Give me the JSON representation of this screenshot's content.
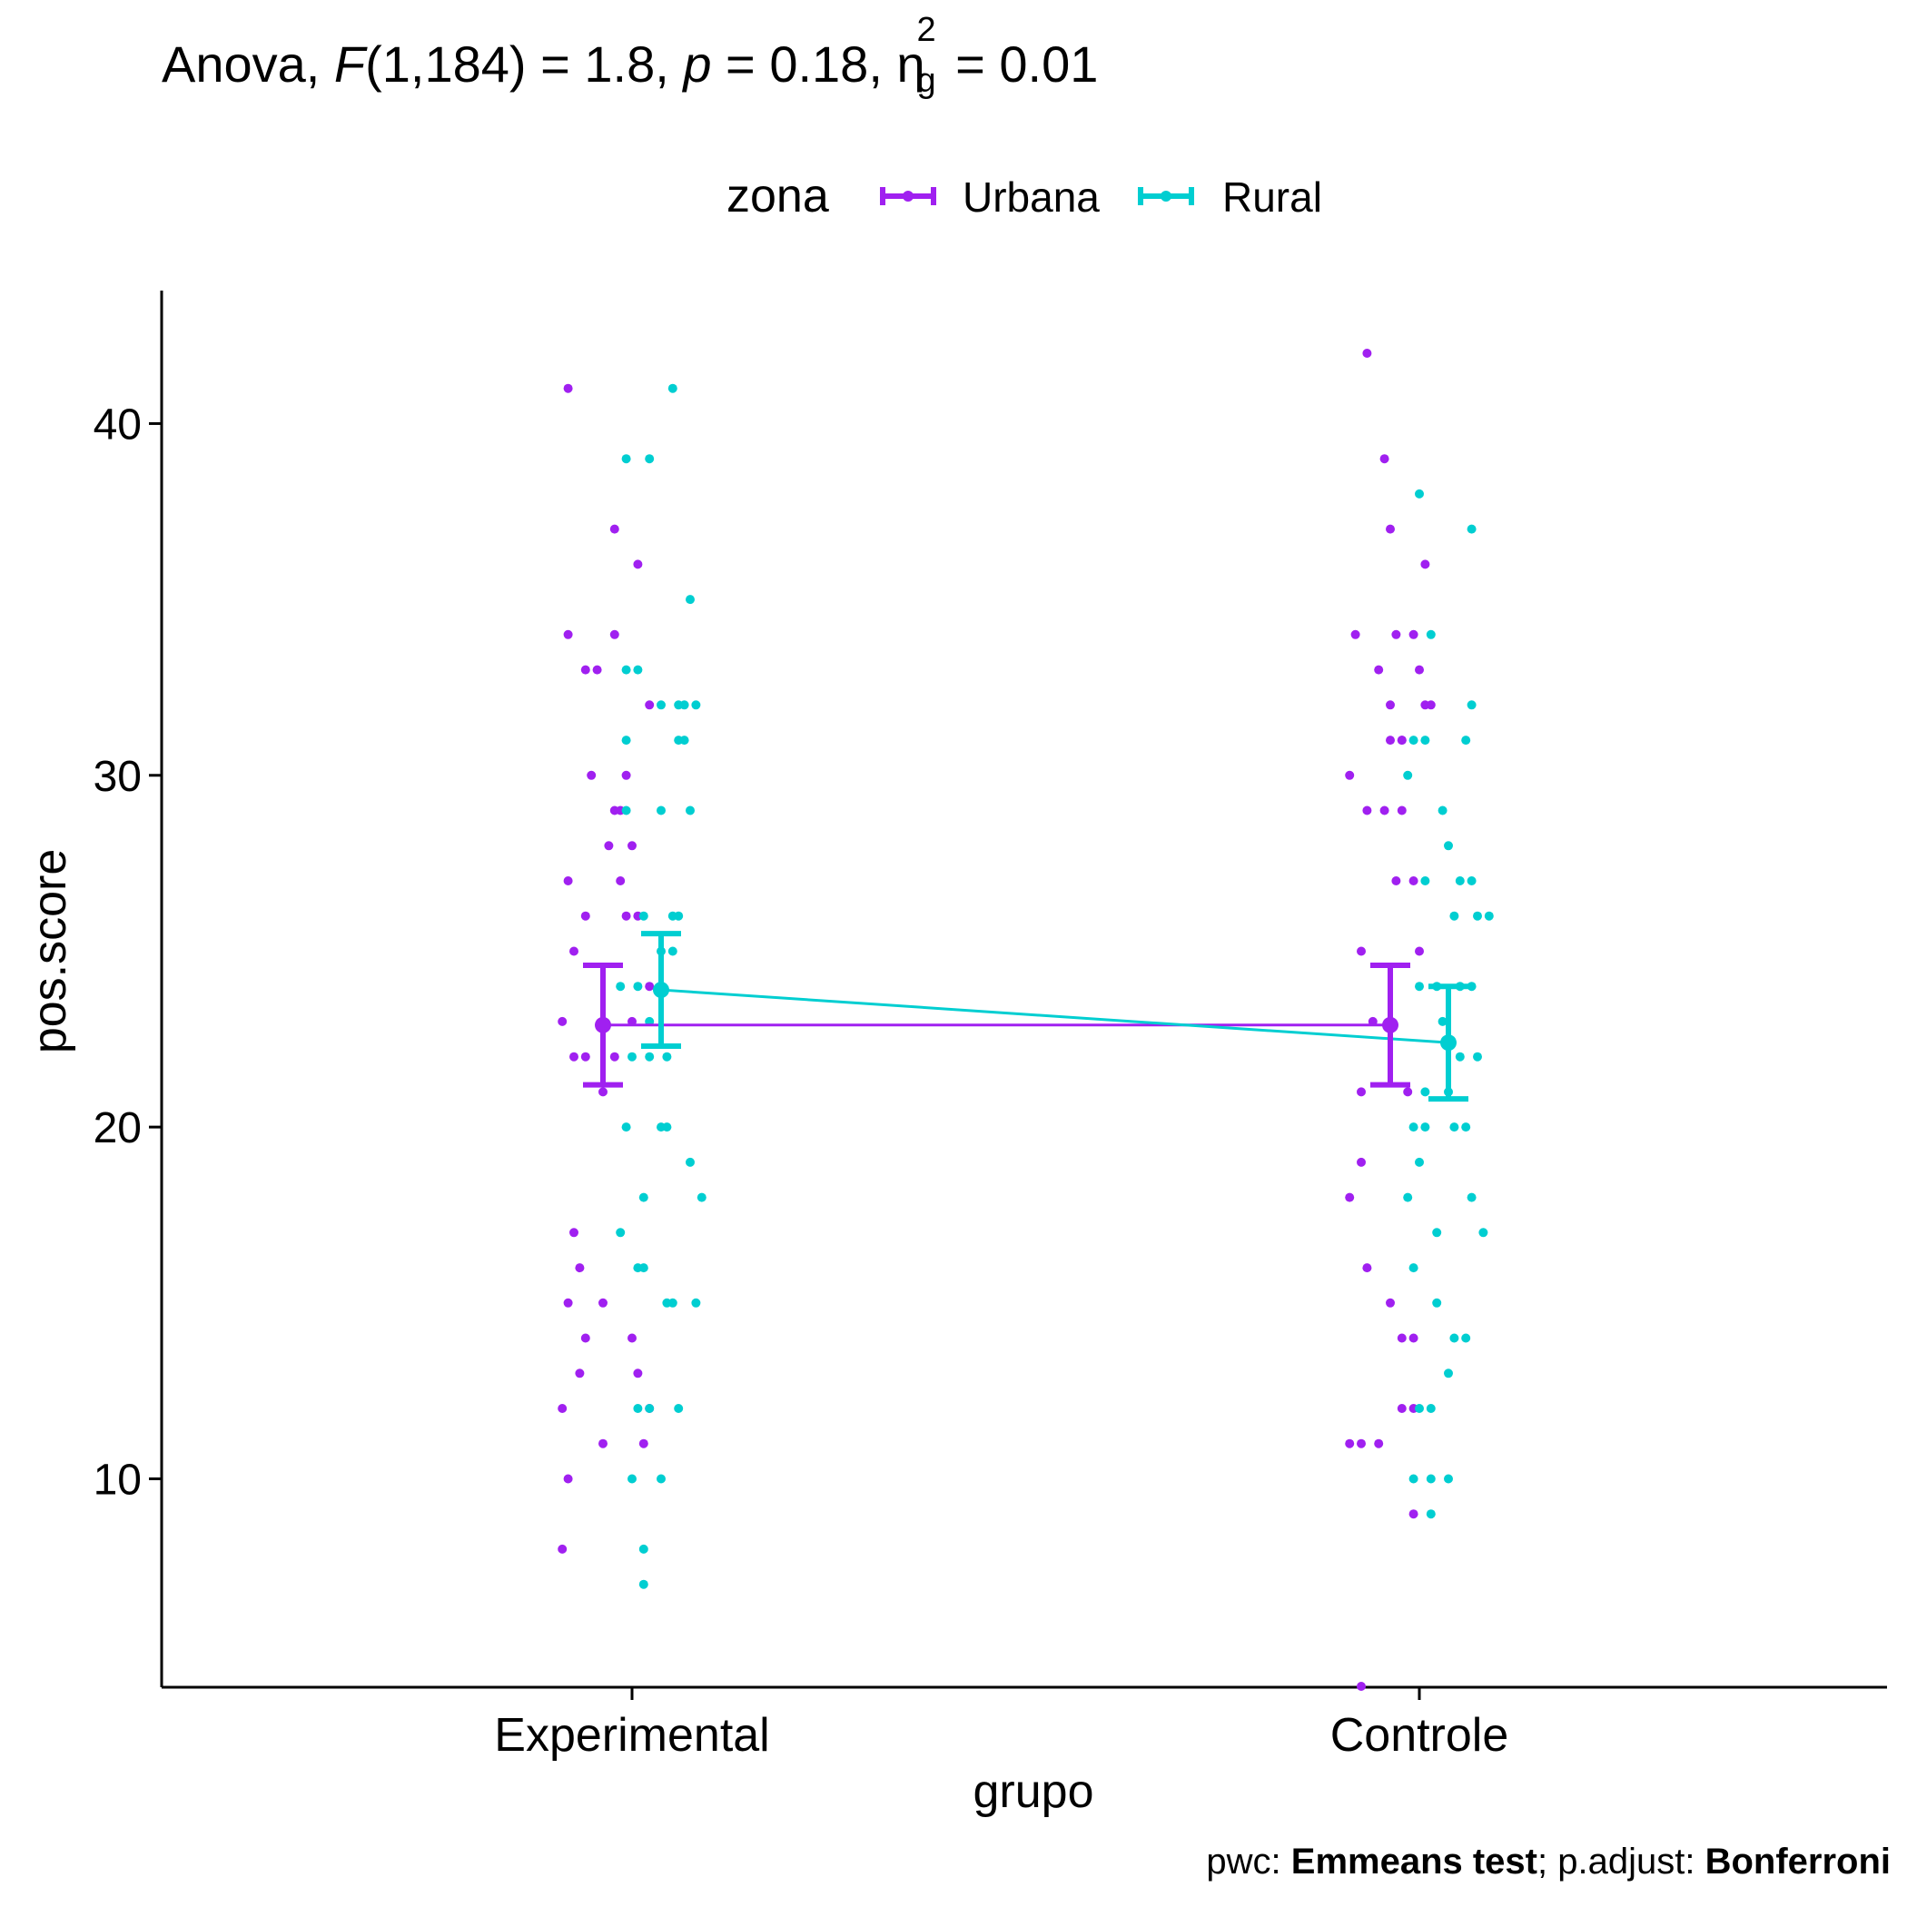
{
  "title": {
    "prefix": "Anova, ",
    "F_symbol": "F",
    "F_args": "(1,184) = 1.8, ",
    "p_symbol": "p",
    "p_value": " = 0.18, ",
    "eta_symbol": "η",
    "eta_sup": "2",
    "eta_sub": "g",
    "eta_value": " = 0.01"
  },
  "legend": {
    "title": "zona",
    "items": [
      {
        "label": "Urbana",
        "color": "#A020F0"
      },
      {
        "label": "Rural",
        "color": "#00CED1"
      }
    ]
  },
  "caption": {
    "pwc_label": "pwc: ",
    "pwc_value": "Emmeans test",
    "sep": "; p.adjust: ",
    "adjust_value": "Bonferroni"
  },
  "chart_data": {
    "type": "scatter",
    "xlabel": "grupo",
    "ylabel": "pos.score",
    "categories": [
      "Experimental",
      "Controle"
    ],
    "ylim": [
      4.1,
      43.6
    ],
    "yticks": [
      10,
      20,
      30,
      40
    ],
    "legend_position": "top",
    "grid": false,
    "series": [
      {
        "name": "Urbana",
        "color": "#A020F0",
        "means": [
          22.9,
          22.9
        ],
        "ci_low": [
          21.2,
          21.2
        ],
        "ci_high": [
          24.6,
          24.6
        ],
        "points": [
          [
            [
              -0.06,
              41
            ],
            [
              0.02,
              37
            ],
            [
              -0.06,
              34
            ],
            [
              0.02,
              34
            ],
            [
              0.06,
              36
            ],
            [
              -0.03,
              33
            ],
            [
              -0.01,
              33
            ],
            [
              0.08,
              32
            ],
            [
              -0.02,
              30
            ],
            [
              0.04,
              30
            ],
            [
              -0.06,
              27
            ],
            [
              0.03,
              27
            ],
            [
              0.04,
              26
            ],
            [
              -0.05,
              25
            ],
            [
              0.01,
              28
            ],
            [
              0.05,
              28
            ],
            [
              -0.07,
              23
            ],
            [
              -0.03,
              22
            ],
            [
              -0.05,
              22
            ],
            [
              0.02,
              22
            ],
            [
              0.0,
              21
            ],
            [
              0.05,
              23
            ],
            [
              0.08,
              24
            ],
            [
              -0.05,
              17
            ],
            [
              -0.04,
              16
            ],
            [
              -0.06,
              15
            ],
            [
              -0.03,
              14
            ],
            [
              0.0,
              15
            ],
            [
              0.05,
              14
            ],
            [
              -0.04,
              13
            ],
            [
              0.06,
              13
            ],
            [
              -0.07,
              12
            ],
            [
              0.08,
              12
            ],
            [
              -0.06,
              10
            ],
            [
              0.0,
              11
            ],
            [
              0.07,
              11
            ],
            [
              -0.07,
              8
            ],
            [
              0.02,
              29
            ],
            [
              0.03,
              29
            ],
            [
              -0.03,
              26
            ],
            [
              0.06,
              26
            ]
          ],
          [
            [
              -0.04,
              42
            ],
            [
              -0.01,
              39
            ],
            [
              0.0,
              37
            ],
            [
              0.06,
              36
            ],
            [
              -0.06,
              34
            ],
            [
              -0.02,
              33
            ],
            [
              0.01,
              34
            ],
            [
              0.04,
              34
            ],
            [
              0.0,
              32
            ],
            [
              0.05,
              33
            ],
            [
              -0.04,
              29
            ],
            [
              -0.01,
              29
            ],
            [
              0.02,
              31
            ],
            [
              0.02,
              31
            ],
            [
              -0.07,
              30
            ],
            [
              0.0,
              31
            ],
            [
              0.02,
              29
            ],
            [
              -0.05,
              25
            ],
            [
              0.01,
              27
            ],
            [
              0.05,
              25
            ],
            [
              -0.03,
              23
            ],
            [
              0.0,
              23
            ],
            [
              -0.05,
              21
            ],
            [
              0.03,
              21
            ],
            [
              -0.05,
              19
            ],
            [
              -0.07,
              18
            ],
            [
              -0.04,
              16
            ],
            [
              0.0,
              15
            ],
            [
              0.02,
              14
            ],
            [
              0.04,
              14
            ],
            [
              0.02,
              12
            ],
            [
              0.04,
              12
            ],
            [
              -0.05,
              11
            ],
            [
              -0.02,
              11
            ],
            [
              -0.07,
              11
            ],
            [
              0.04,
              9
            ],
            [
              -0.05,
              4.1
            ],
            [
              0.04,
              27
            ],
            [
              0.06,
              32
            ],
            [
              0.07,
              32
            ]
          ]
        ]
      },
      {
        "name": "Rural",
        "color": "#00CED1",
        "means": [
          23.9,
          22.4
        ],
        "ci_low": [
          22.3,
          20.8
        ],
        "ci_high": [
          25.5,
          24.0
        ],
        "points": [
          [
            [
              -0.06,
              39
            ],
            [
              -0.02,
              39
            ],
            [
              0.02,
              41
            ],
            [
              0.05,
              35
            ],
            [
              -0.06,
              33
            ],
            [
              -0.04,
              33
            ],
            [
              -0.06,
              31
            ],
            [
              0.0,
              32
            ],
            [
              0.03,
              32
            ],
            [
              0.04,
              32
            ],
            [
              -0.06,
              29
            ],
            [
              0.0,
              29
            ],
            [
              0.05,
              29
            ],
            [
              -0.03,
              26
            ],
            [
              0.02,
              26
            ],
            [
              0.03,
              26
            ],
            [
              -0.07,
              24
            ],
            [
              -0.04,
              24
            ],
            [
              -0.02,
              23
            ],
            [
              0.0,
              25
            ],
            [
              0.02,
              25
            ],
            [
              0.01,
              22
            ],
            [
              -0.06,
              20
            ],
            [
              0.0,
              20
            ],
            [
              0.01,
              20
            ],
            [
              -0.03,
              18
            ],
            [
              0.05,
              19
            ],
            [
              0.07,
              18
            ],
            [
              -0.07,
              17
            ],
            [
              -0.04,
              16
            ],
            [
              -0.03,
              16
            ],
            [
              0.01,
              15
            ],
            [
              0.02,
              15
            ],
            [
              0.06,
              15
            ],
            [
              -0.04,
              12
            ],
            [
              -0.02,
              12
            ],
            [
              0.03,
              12
            ],
            [
              -0.05,
              10
            ],
            [
              0.0,
              10
            ],
            [
              -0.03,
              8
            ],
            [
              -0.03,
              7
            ],
            [
              0.03,
              31
            ],
            [
              0.04,
              31
            ],
            [
              0.06,
              32
            ],
            [
              -0.05,
              22
            ],
            [
              -0.02,
              22
            ]
          ],
          [
            [
              -0.05,
              38
            ],
            [
              -0.06,
              31
            ],
            [
              -0.04,
              31
            ],
            [
              -0.03,
              34
            ],
            [
              -0.07,
              30
            ],
            [
              0.04,
              37
            ],
            [
              -0.04,
              27
            ],
            [
              -0.01,
              29
            ],
            [
              0.01,
              26
            ],
            [
              0.03,
              31
            ],
            [
              0.04,
              32
            ],
            [
              0.0,
              28
            ],
            [
              0.02,
              27
            ],
            [
              0.04,
              27
            ],
            [
              0.07,
              26
            ],
            [
              0.05,
              26
            ],
            [
              -0.05,
              24
            ],
            [
              -0.02,
              24
            ],
            [
              0.02,
              24
            ],
            [
              0.04,
              24
            ],
            [
              -0.04,
              21
            ],
            [
              -0.01,
              23
            ],
            [
              0.02,
              22
            ],
            [
              0.05,
              22
            ],
            [
              -0.06,
              20
            ],
            [
              -0.04,
              20
            ],
            [
              0.01,
              20
            ],
            [
              0.03,
              20
            ],
            [
              -0.05,
              19
            ],
            [
              -0.07,
              18
            ],
            [
              0.04,
              18
            ],
            [
              0.06,
              17
            ],
            [
              -0.06,
              16
            ],
            [
              -0.02,
              17
            ],
            [
              -0.02,
              15
            ],
            [
              0.01,
              14
            ],
            [
              0.03,
              14
            ],
            [
              0.0,
              13
            ],
            [
              -0.05,
              12
            ],
            [
              -0.03,
              12
            ],
            [
              -0.06,
              10
            ],
            [
              -0.03,
              10
            ],
            [
              0.0,
              10
            ],
            [
              -0.03,
              9
            ],
            [
              0.0,
              21
            ]
          ]
        ]
      }
    ]
  }
}
